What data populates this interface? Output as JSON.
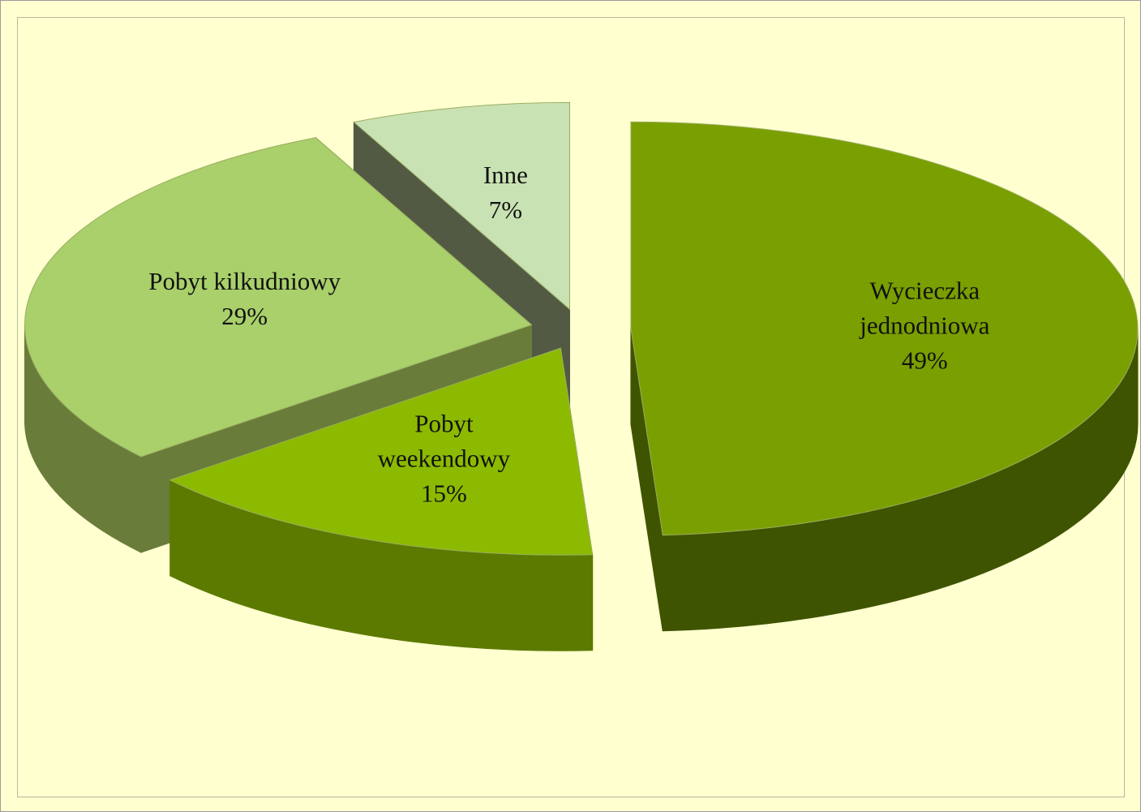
{
  "chart_data": {
    "type": "pie3d",
    "categories": [
      "Wycieczka jednodniowa",
      "Pobyt weekendowy",
      "Pobyt kilkudniowy",
      "Inne"
    ],
    "values": [
      49,
      15,
      29,
      7
    ],
    "value_labels": [
      "49%",
      "15%",
      "29%",
      "7%"
    ],
    "colors": [
      "#7a9f00",
      "#8cba00",
      "#a9d06b",
      "#c9e2b3"
    ],
    "side_colors": [
      "#3f5400",
      "#5c7a00",
      "#6a7c3a",
      "#525a44"
    ],
    "start_angle": 0,
    "exploded": true
  }
}
